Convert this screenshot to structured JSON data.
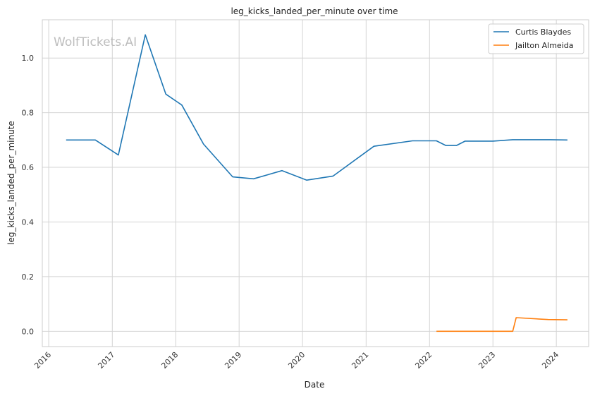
{
  "chart_data": {
    "type": "line",
    "title": "leg_kicks_landed_per_minute over time",
    "xlabel": "Date",
    "ylabel": "leg_kicks_landed_per_minute",
    "watermark": "WolfTickets.AI",
    "x_tick_labels": [
      "2016",
      "2017",
      "2018",
      "2019",
      "2020",
      "2021",
      "2022",
      "2023",
      "2024"
    ],
    "y_tick_labels": [
      "0.0",
      "0.2",
      "0.4",
      "0.6",
      "0.8",
      "1.0"
    ],
    "y_ticks": [
      0.0,
      0.2,
      0.4,
      0.6,
      0.8,
      1.0
    ],
    "xlim": [
      "2015-11-25",
      "2024-07-05"
    ],
    "ylim": [
      -0.056,
      1.14
    ],
    "grid": true,
    "legend_position": "top-right",
    "series": [
      {
        "name": "Curtis Blaydes",
        "color": "#1f77b4",
        "points": [
          [
            "2016-04-10",
            0.7
          ],
          [
            "2016-09-25",
            0.7
          ],
          [
            "2017-02-05",
            0.645
          ],
          [
            "2017-07-10",
            1.085
          ],
          [
            "2017-11-05",
            0.868
          ],
          [
            "2018-02-05",
            0.828
          ],
          [
            "2018-06-10",
            0.685
          ],
          [
            "2018-11-25",
            0.565
          ],
          [
            "2019-03-25",
            0.558
          ],
          [
            "2019-09-05",
            0.588
          ],
          [
            "2020-01-25",
            0.553
          ],
          [
            "2020-06-25",
            0.568
          ],
          [
            "2021-02-15",
            0.677
          ],
          [
            "2021-09-25",
            0.697
          ],
          [
            "2022-02-10",
            0.697
          ],
          [
            "2022-04-05",
            0.68
          ],
          [
            "2022-06-05",
            0.68
          ],
          [
            "2022-07-25",
            0.696
          ],
          [
            "2023-01-01",
            0.696
          ],
          [
            "2023-04-25",
            0.701
          ],
          [
            "2023-11-25",
            0.701
          ],
          [
            "2024-03-05",
            0.7
          ]
        ]
      },
      {
        "name": "Jailton Almeida",
        "color": "#ff7f0e",
        "points": [
          [
            "2022-02-10",
            0.0
          ],
          [
            "2022-06-25",
            0.0
          ],
          [
            "2023-04-25",
            0.0
          ],
          [
            "2023-05-15",
            0.05
          ],
          [
            "2023-11-15",
            0.043
          ],
          [
            "2024-03-05",
            0.042
          ]
        ]
      }
    ]
  }
}
